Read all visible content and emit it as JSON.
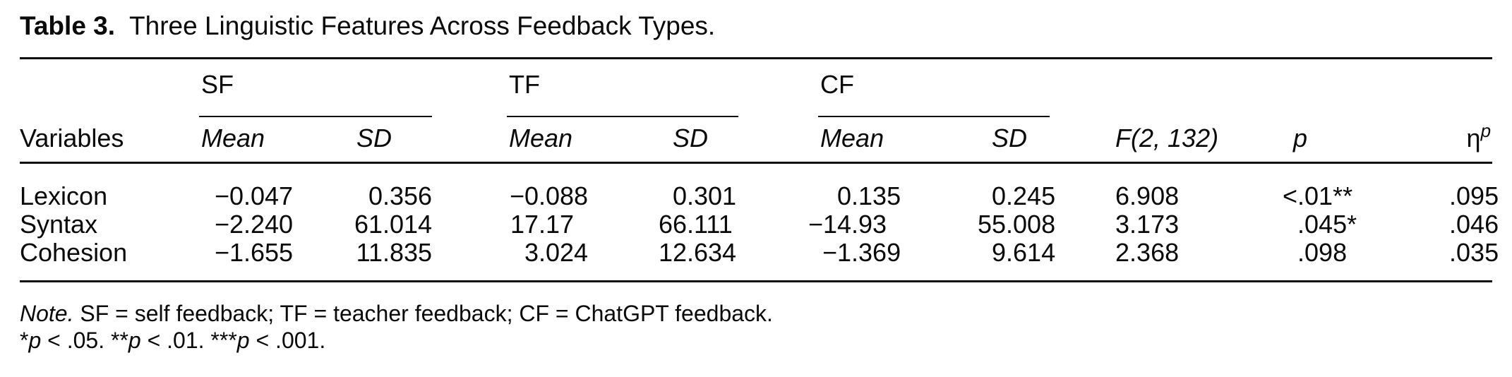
{
  "table": {
    "title_label": "Table 3.",
    "title_text": "Three Linguistic Features Across Feedback Types.",
    "groups": [
      {
        "label": "SF"
      },
      {
        "label": "TF"
      },
      {
        "label": "CF"
      }
    ],
    "columns": {
      "variables": "Variables",
      "mean": "Mean",
      "sd": "SD",
      "f": "F(2, 132)",
      "p": "p",
      "eta_base": "η",
      "eta_sup": "p"
    },
    "rows": [
      {
        "variable": "Lexicon",
        "sf_mean": "−0.047",
        "sf_sd": "0.356",
        "tf_mean": "−0.088",
        "tf_sd": "0.301",
        "cf_mean": "0.135",
        "cf_sd": "0.245",
        "f": "6.908",
        "p": "<.01**",
        "eta": ".095"
      },
      {
        "variable": "Syntax",
        "sf_mean": "−2.240",
        "sf_sd": "61.014",
        "tf_mean": "17.17",
        "tf_sd": "66.111",
        "cf_mean": "−14.93",
        "cf_sd": "55.008",
        "f": "3.173",
        "p": ".045*",
        "eta": ".046"
      },
      {
        "variable": "Cohesion",
        "sf_mean": "−1.655",
        "sf_sd": "11.835",
        "tf_mean": "3.024",
        "tf_sd": "12.634",
        "cf_mean": "−1.369",
        "cf_sd": "9.614",
        "f": "2.368",
        "p": ".098",
        "eta": ".035"
      }
    ],
    "note": {
      "label": "Note.",
      "text": " SF = self feedback; TF = teacher feedback; CF = ChatGPT feedback."
    },
    "sig": [
      {
        "stars": "*",
        "p": "p",
        "cond": " < .05. "
      },
      {
        "stars": "**",
        "p": "p",
        "cond": " < .01. "
      },
      {
        "stars": "***",
        "p": "p",
        "cond": " < .001."
      }
    ]
  }
}
